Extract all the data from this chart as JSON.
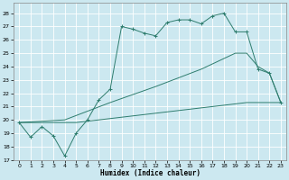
{
  "xlabel": "Humidex (Indice chaleur)",
  "bg_color": "#cce8f0",
  "line_color": "#2e7d6e",
  "grid_color": "#ffffff",
  "xlim": [
    -0.5,
    23.5
  ],
  "ylim": [
    17,
    28.8
  ],
  "yticks": [
    17,
    18,
    19,
    20,
    21,
    22,
    23,
    24,
    25,
    26,
    27,
    28
  ],
  "xticks": [
    0,
    1,
    2,
    3,
    4,
    5,
    6,
    7,
    8,
    9,
    10,
    11,
    12,
    13,
    14,
    15,
    16,
    17,
    18,
    19,
    20,
    21,
    22,
    23
  ],
  "series1_x": [
    0,
    1,
    2,
    3,
    4,
    5,
    6,
    7,
    8,
    9,
    10,
    11,
    12,
    13,
    14,
    15,
    16,
    17,
    18,
    19,
    20,
    21,
    22,
    23
  ],
  "series1_y": [
    19.8,
    18.7,
    19.5,
    18.8,
    17.3,
    19.0,
    20.0,
    21.5,
    22.3,
    27.0,
    26.8,
    26.5,
    26.3,
    27.3,
    27.5,
    27.5,
    27.2,
    27.8,
    28.0,
    26.6,
    26.6,
    23.8,
    23.5,
    21.3
  ],
  "series2_x": [
    0,
    23
  ],
  "series2_y": [
    19.8,
    21.3
  ],
  "series2_mid_x": [
    0,
    4,
    8,
    12,
    16,
    19,
    20,
    21,
    22,
    23
  ],
  "series2_mid_y": [
    19.8,
    20.0,
    21.3,
    22.5,
    23.8,
    25.0,
    25.0,
    24.0,
    23.5,
    21.3
  ],
  "series3_x": [
    0,
    23
  ],
  "series3_y": [
    19.8,
    21.3
  ],
  "series3_mid_x": [
    0,
    5,
    10,
    15,
    20,
    23
  ],
  "series3_mid_y": [
    19.8,
    19.8,
    20.3,
    20.8,
    21.3,
    21.3
  ]
}
